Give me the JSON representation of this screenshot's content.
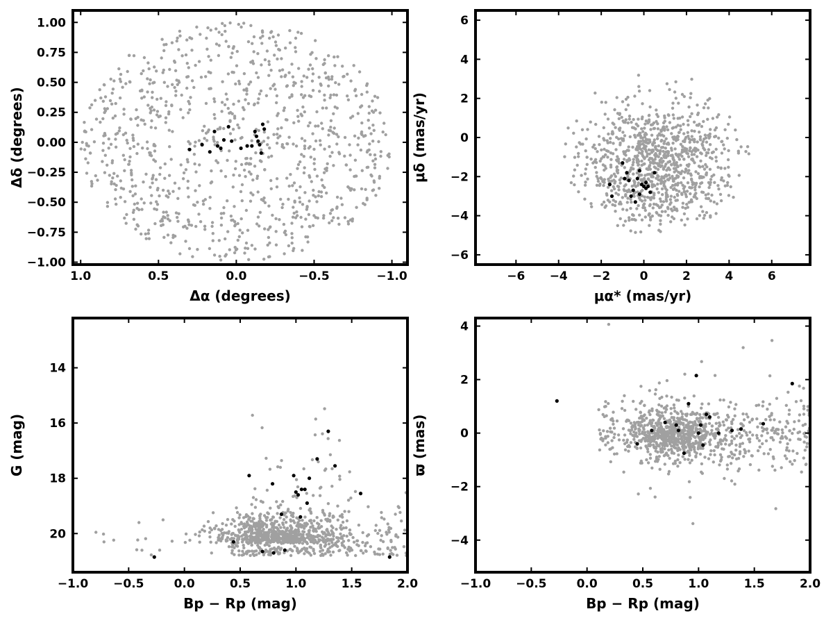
{
  "colors": {
    "field": "#a0a0a0",
    "members": "#000000",
    "frame": "#000000",
    "background": "#ffffff"
  },
  "chart_data": [
    {
      "id": "sky",
      "type": "scatter",
      "xlabel": "Δα (degrees)",
      "ylabel": "Δδ (degrees)",
      "xlim": [
        1.05,
        -1.1
      ],
      "ylim": [
        -1.02,
        1.1
      ],
      "x_inverted": true,
      "xticks": [
        1.0,
        0.5,
        0.0,
        -0.5,
        -1.0
      ],
      "xtick_labels": [
        "1.0",
        "0.5",
        "0.0",
        "−0.5",
        "−1.0"
      ],
      "yticks": [
        -1.0,
        -0.75,
        -0.5,
        -0.25,
        0.0,
        0.25,
        0.5,
        0.75,
        1.0
      ],
      "ytick_labels": [
        "−1.00",
        "−0.75",
        "−0.50",
        "−0.25",
        "0.00",
        "0.25",
        "0.50",
        "0.75",
        "1.00"
      ],
      "field": {
        "count": 1000,
        "distribution": "uniform disk, radius 1.0 deg"
      },
      "members": {
        "x": [
          0.3,
          0.22,
          0.17,
          0.14,
          0.12,
          0.1,
          0.08,
          0.05,
          0.03,
          -0.03,
          -0.07,
          -0.1,
          -0.12,
          -0.13,
          -0.14,
          -0.15,
          -0.16,
          -0.17,
          -0.18
        ],
        "y": [
          -0.06,
          -0.02,
          -0.08,
          0.09,
          -0.03,
          -0.05,
          0.02,
          0.13,
          0.01,
          -0.05,
          -0.03,
          -0.03,
          0.09,
          0.05,
          0.01,
          -0.02,
          -0.09,
          0.15,
          0.11
        ]
      }
    },
    {
      "id": "pm",
      "type": "scatter",
      "xlabel": "μα* (mas/yr)",
      "ylabel": "μδ (mas/yr)",
      "xlim": [
        -7.9,
        7.8
      ],
      "ylim": [
        -6.5,
        6.5
      ],
      "xticks": [
        -6,
        -4,
        -2,
        0,
        2,
        4,
        6
      ],
      "xtick_labels": [
        "−6",
        "−4",
        "−2",
        "0",
        "2",
        "4",
        "6"
      ],
      "yticks": [
        -6,
        -4,
        -2,
        0,
        2,
        4,
        6
      ],
      "ytick_labels": [
        "−6",
        "−4",
        "−2",
        "0",
        "2",
        "4",
        "6"
      ],
      "field": {
        "count": 1000,
        "distribution": "broad cloud centred near (0.5, -1.5) mas/yr"
      },
      "members": {
        "x": [
          -1.6,
          -1.5,
          -1.0,
          -0.9,
          -0.8,
          -0.7,
          -0.6,
          -0.5,
          -0.4,
          -0.3,
          -0.2,
          -0.1,
          0.0,
          0.1,
          0.2,
          0.3,
          0.5,
          -0.2,
          0.1
        ],
        "y": [
          -2.4,
          -3.0,
          -1.3,
          -2.1,
          -1.8,
          -2.2,
          -3.0,
          -2.7,
          -3.3,
          -2.1,
          -1.7,
          -2.4,
          -2.5,
          -2.6,
          -2.5,
          -2.8,
          -1.8,
          -2.9,
          -2.3
        ]
      }
    },
    {
      "id": "cmd",
      "type": "scatter",
      "xlabel": "Bp − Rp (mag)",
      "ylabel": "G (mag)",
      "xlim": [
        -1.0,
        2.0
      ],
      "ylim": [
        21.4,
        12.2
      ],
      "y_inverted": true,
      "xticks": [
        -1.0,
        -0.5,
        0.0,
        0.5,
        1.0,
        1.5,
        2.0
      ],
      "xtick_labels": [
        "−1.0",
        "−0.5",
        "0.0",
        "0.5",
        "1.0",
        "1.5",
        "2.0"
      ],
      "yticks": [
        14,
        16,
        18,
        20
      ],
      "ytick_labels": [
        "14",
        "16",
        "18",
        "20"
      ],
      "field": {
        "count": 1000,
        "distribution": "dense near G 20-21, spreading to brighter G"
      },
      "members": {
        "x": [
          -0.27,
          0.44,
          0.58,
          0.7,
          0.79,
          0.8,
          0.87,
          0.9,
          0.98,
          1.0,
          1.02,
          1.04,
          1.05,
          1.08,
          1.1,
          1.12,
          1.19,
          1.29,
          1.35,
          1.58,
          1.84
        ],
        "y": [
          20.85,
          20.3,
          17.9,
          20.65,
          18.2,
          20.7,
          19.3,
          20.6,
          17.9,
          18.5,
          18.6,
          19.4,
          18.4,
          18.4,
          18.9,
          18.0,
          17.3,
          16.3,
          17.55,
          18.55,
          20.85
        ]
      }
    },
    {
      "id": "parallax",
      "type": "scatter",
      "xlabel": "Bp − Rp (mag)",
      "ylabel": "ϖ (mas)",
      "xlim": [
        -1.0,
        2.0
      ],
      "ylim": [
        -5.2,
        4.3
      ],
      "xticks": [
        -1.0,
        -0.5,
        0.0,
        0.5,
        1.0,
        1.5,
        2.0
      ],
      "xtick_labels": [
        "−1.0",
        "−0.5",
        "0.0",
        "0.5",
        "1.0",
        "1.5",
        "2.0"
      ],
      "yticks": [
        -4,
        -2,
        0,
        2,
        4
      ],
      "ytick_labels": [
        "−4",
        "−2",
        "0",
        "2",
        "4"
      ],
      "field": {
        "count": 1000,
        "distribution": "concentrated near 0 mas, colour 0.4-1.2"
      },
      "members": {
        "x": [
          -0.27,
          0.45,
          0.58,
          0.7,
          0.8,
          0.82,
          0.87,
          0.91,
          0.98,
          1.0,
          1.02,
          1.04,
          1.07,
          1.1,
          1.18,
          1.3,
          1.38,
          1.58,
          1.84
        ],
        "y": [
          1.2,
          -0.4,
          0.1,
          0.4,
          0.3,
          0.1,
          -0.75,
          1.1,
          2.15,
          0.0,
          0.3,
          -0.45,
          0.7,
          0.6,
          0.0,
          0.1,
          0.15,
          0.35,
          1.85
        ]
      }
    }
  ]
}
